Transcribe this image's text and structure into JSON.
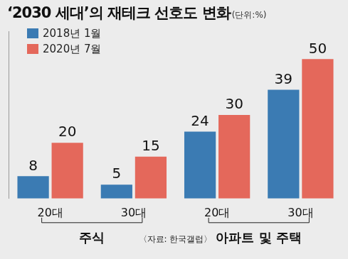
{
  "chart_data": {
    "type": "bar",
    "title": "‘2030 세대’의 재테크 선호도 변화",
    "subtitle": "(단위:%)",
    "categories": [
      "20대",
      "30대",
      "20대",
      "30대"
    ],
    "groups": [
      {
        "label": "주식",
        "categories": [
          "20대",
          "30대"
        ]
      },
      {
        "label": "아파트 및 주택",
        "categories": [
          "20대",
          "30대"
        ]
      }
    ],
    "series": [
      {
        "name": "2018년 1월",
        "color": "#3b7bb3",
        "values": [
          8,
          5,
          24,
          39
        ]
      },
      {
        "name": "2020년 7월",
        "color": "#e4685b",
        "values": [
          20,
          15,
          30,
          50
        ]
      }
    ],
    "source": "〈자료: 한국갤럽〉",
    "ylim": [
      0,
      60
    ],
    "data_labels": true,
    "tick_labels": "x",
    "grid": false,
    "legend": "top-left"
  }
}
